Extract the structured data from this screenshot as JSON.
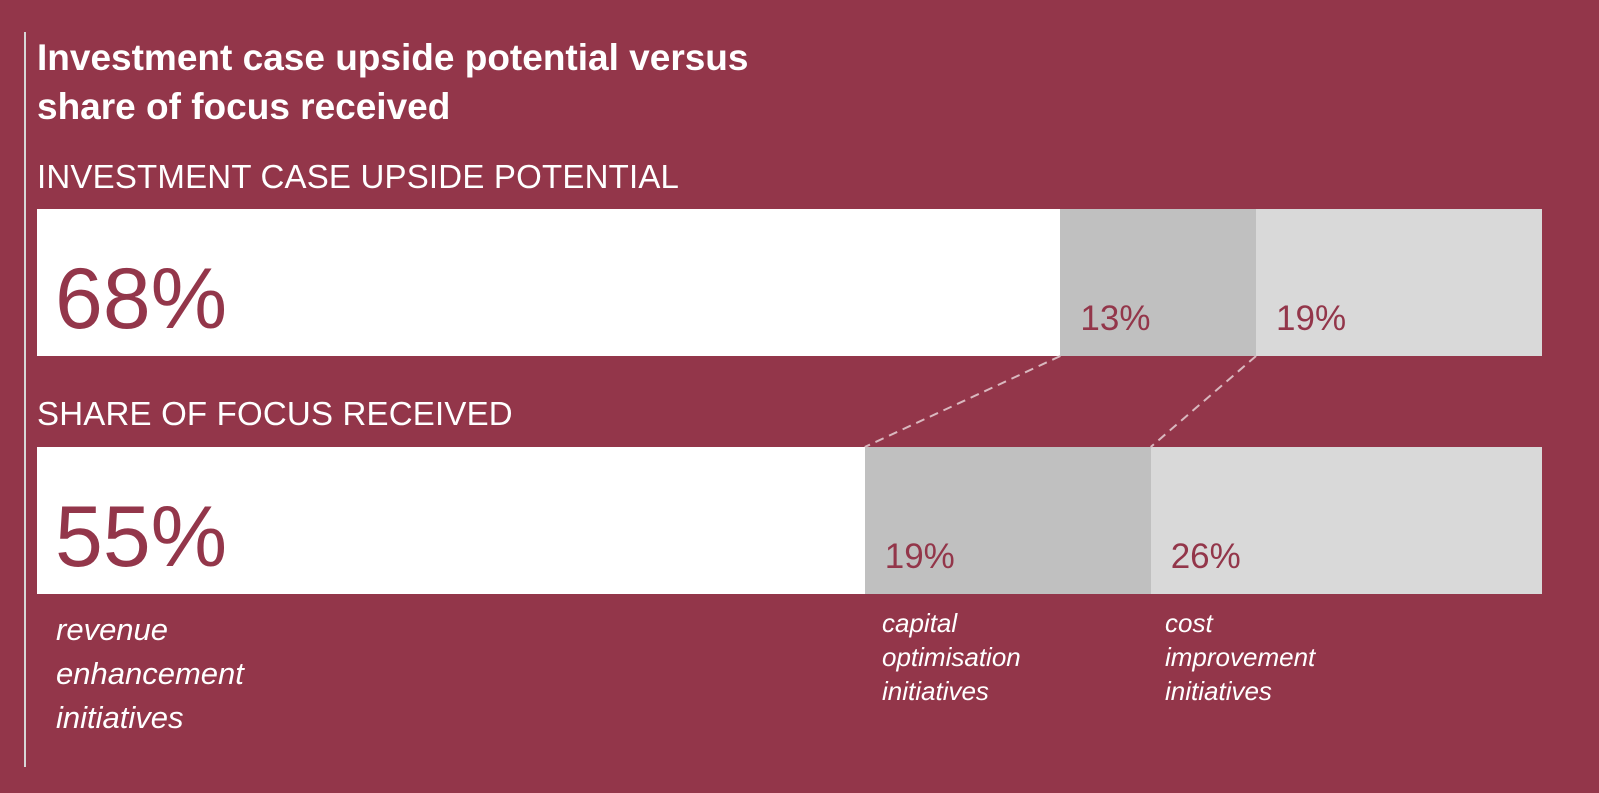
{
  "title_lines": [
    "Investment case upside potential versus",
    "share of focus received"
  ],
  "chart_data": {
    "type": "bar",
    "orientation": "horizontal-stacked-100",
    "title": "Investment case upside potential versus share of focus received",
    "categories": [
      "INVESTMENT CASE UPSIDE POTENTIAL",
      "SHARE OF FOCUS RECEIVED"
    ],
    "series": [
      {
        "name": "revenue enhancement initiatives",
        "name_lines": [
          "revenue",
          "enhancement",
          "initiatives"
        ],
        "values": [
          68,
          55
        ],
        "labels": [
          "68%",
          "55%"
        ],
        "color": "#ffffff"
      },
      {
        "name": "capital optimisation initiatives",
        "name_lines": [
          "capital",
          "optimisation",
          "initiatives"
        ],
        "values": [
          13,
          19
        ],
        "labels": [
          "13%",
          "19%"
        ],
        "color": "#c0c0c0"
      },
      {
        "name": "cost improvement initiatives",
        "name_lines": [
          "cost",
          "improvement",
          "initiatives"
        ],
        "values": [
          19,
          26
        ],
        "labels": [
          "19%",
          "26%"
        ],
        "color": "#d9d9d9"
      }
    ],
    "value_color": "#93364a",
    "background_color": "#93364a",
    "connector_color": "#d9b8bf"
  }
}
